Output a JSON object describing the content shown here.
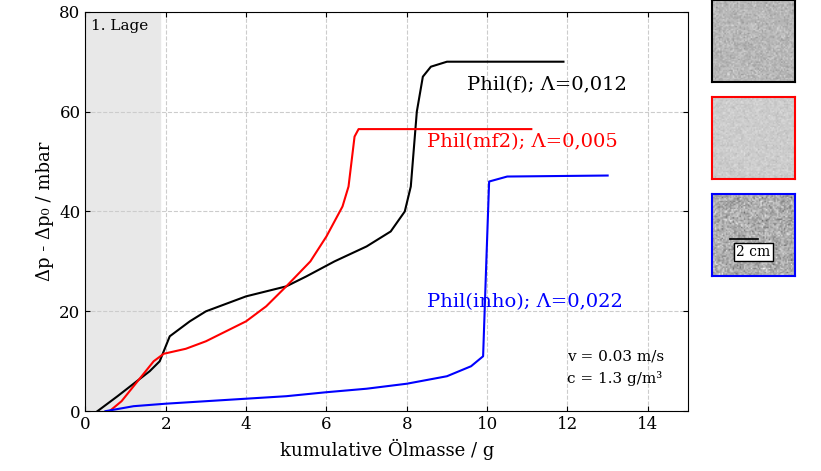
{
  "chart_data": {
    "type": "line",
    "x_label": "kumulative Ölmasse / g",
    "y_label": "Δp - Δp₀ / mbar",
    "xlim": [
      0,
      15
    ],
    "xticks": [
      0,
      2,
      4,
      6,
      8,
      10,
      12,
      14
    ],
    "ylim": [
      0,
      80
    ],
    "yticks": [
      0,
      20,
      40,
      60,
      80
    ],
    "grid": true,
    "shaded_region": {
      "label": "1. Lage",
      "x": [
        0,
        1.85
      ]
    },
    "annotations": [
      "v = 0.03 m/s",
      "c = 1.3 g/m³"
    ],
    "scale_bar_label": "2 cm",
    "series": [
      {
        "name": "Phil(f); Λ=0,012",
        "color": "#000000",
        "line_style": "solid",
        "x": [
          0.3,
          0.8,
          1.2,
          1.6,
          1.85,
          2.1,
          2.6,
          3.0,
          4.0,
          5.0,
          5.5,
          6.2,
          7.0,
          7.6,
          7.95,
          8.1,
          8.25,
          8.4,
          8.6,
          9.0,
          10.0,
          11.9
        ],
        "values": [
          0,
          3,
          5.5,
          8,
          10,
          15,
          18,
          20,
          23,
          25,
          27,
          30,
          33,
          36,
          40,
          45,
          60,
          67,
          69,
          70,
          70,
          70
        ]
      },
      {
        "name": "Phil(mf2); Λ=0,005",
        "color": "#ff0000",
        "line_style": "solid",
        "x": [
          0.6,
          0.9,
          1.3,
          1.7,
          1.95,
          2.5,
          3.0,
          3.5,
          4.0,
          4.5,
          5.0,
          5.6,
          6.0,
          6.4,
          6.55,
          6.7,
          6.8,
          8.0,
          11.1
        ],
        "values": [
          0,
          2,
          6,
          10,
          11.5,
          12.5,
          14,
          16,
          18,
          21,
          25,
          30,
          35,
          41,
          45,
          55,
          56.5,
          56.5,
          56.5
        ]
      },
      {
        "name": "Phil(inho); Λ=0,022",
        "color": "#0000ff",
        "line_style": "solid",
        "x": [
          0.5,
          1.2,
          2.0,
          3.0,
          4.0,
          5.0,
          6.0,
          7.0,
          8.0,
          9.0,
          9.6,
          9.9,
          9.98,
          10.05,
          10.5,
          13.0
        ],
        "values": [
          0,
          1,
          1.5,
          2,
          2.5,
          3,
          3.8,
          4.5,
          5.5,
          7,
          9,
          11,
          30,
          46,
          47,
          47.2
        ]
      }
    ]
  }
}
